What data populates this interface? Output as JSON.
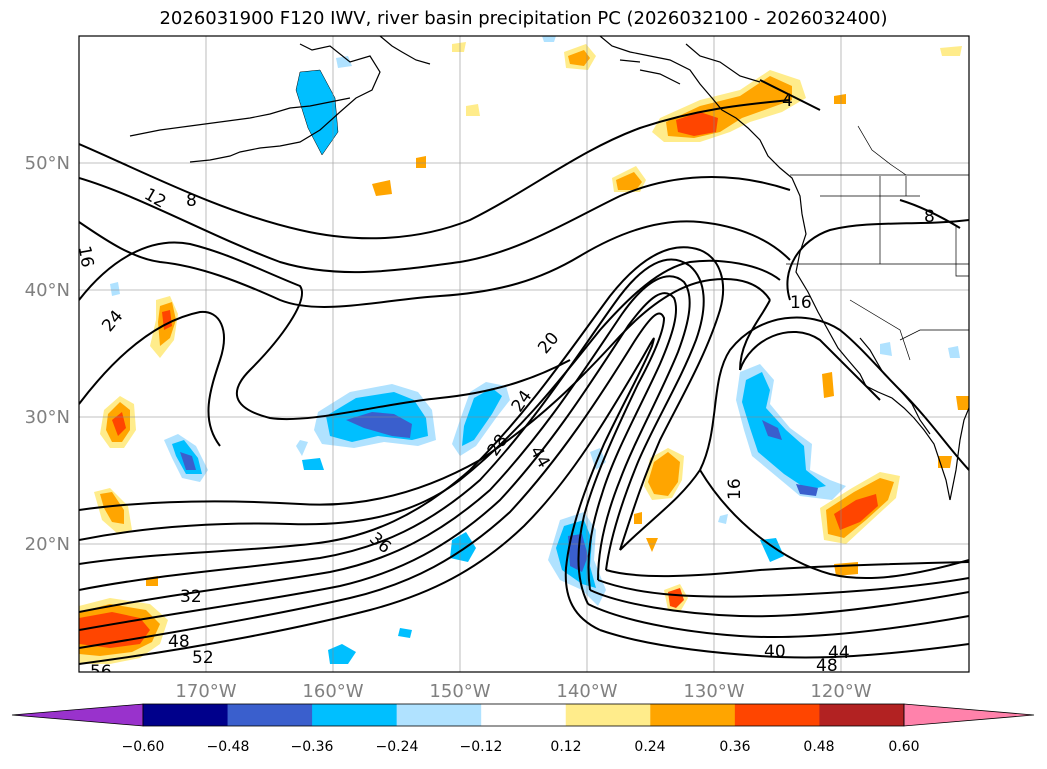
{
  "title": "2026031900 F120 IWV, river basin precipitation PC (2026032100 - 2026032400)",
  "lat_labels": [
    "50°N",
    "40°N",
    "30°N",
    "20°N"
  ],
  "lon_labels": [
    "170°W",
    "160°W",
    "150°W",
    "140°W",
    "130°W",
    "120°W"
  ],
  "contour_labels": [
    "8",
    "12",
    "16",
    "24",
    "20",
    "24",
    "28",
    "44",
    "36",
    "32",
    "48",
    "52",
    "56",
    "16",
    "16",
    "40",
    "48",
    "44",
    "4",
    "8"
  ],
  "colorbar": {
    "ticks": [
      "−0.60",
      "−0.48",
      "−0.36",
      "−0.24",
      "−0.12",
      "0.12",
      "0.24",
      "0.36",
      "0.48",
      "0.60"
    ],
    "colors": [
      "#9932cc",
      "#00008b",
      "#3a5fcd",
      "#00bfff",
      "#b0e2ff",
      "#ffffff",
      "#ffec8b",
      "#ffa500",
      "#ff4500",
      "#b22222",
      "#ff82ab"
    ]
  }
}
